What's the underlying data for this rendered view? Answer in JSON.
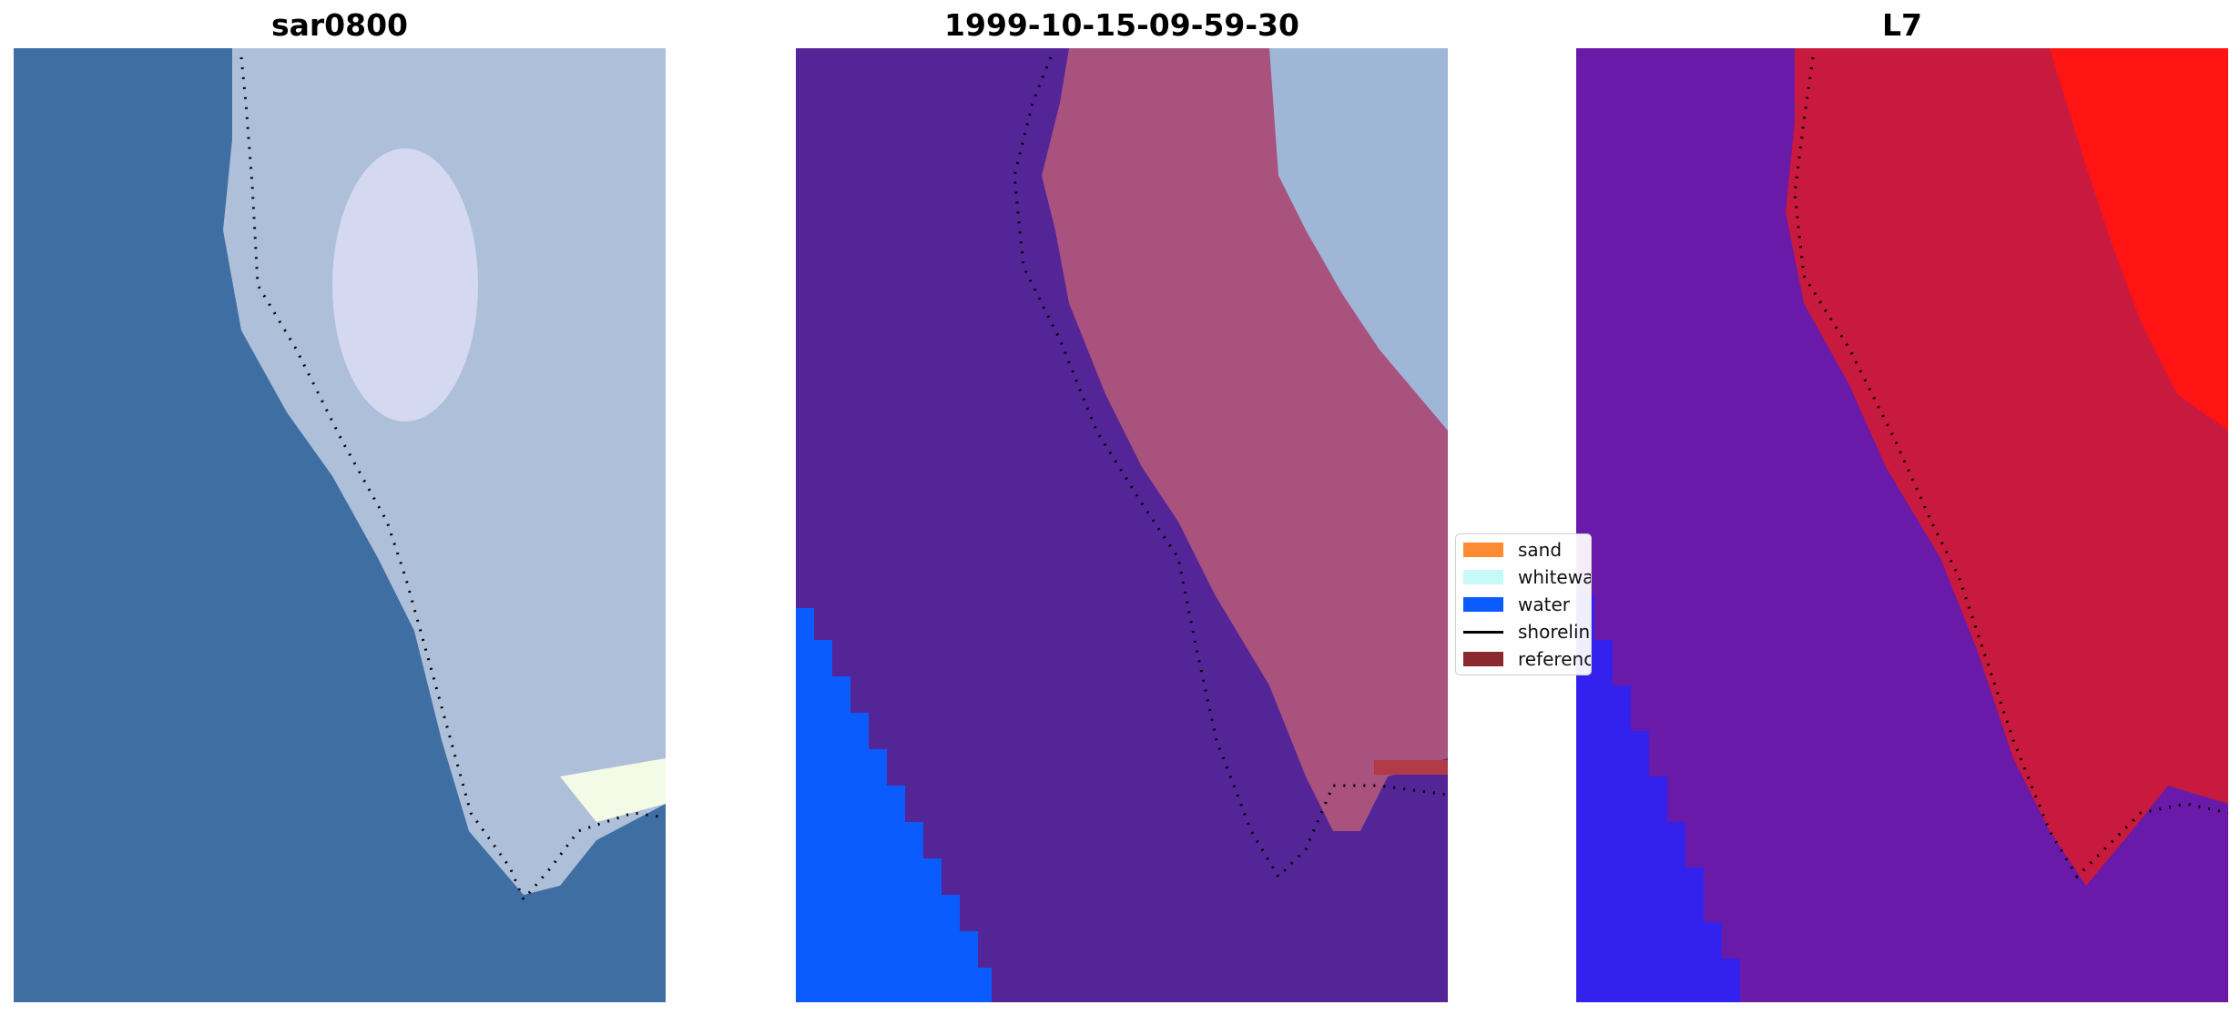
{
  "panels": [
    {
      "title": "sar0800",
      "kind": "rgb"
    },
    {
      "title": "1999-10-15-09-59-30",
      "kind": "classified"
    },
    {
      "title": "L7",
      "kind": "probability"
    }
  ],
  "legend": {
    "items": [
      {
        "label": "sand",
        "color": "#ff8c33",
        "type": "patch"
      },
      {
        "label": "whitewater",
        "color": "#c6f9f7",
        "type": "patch"
      },
      {
        "label": "water",
        "color": "#0a5cff",
        "type": "patch"
      },
      {
        "label": "shoreline",
        "color": "#000000",
        "type": "line"
      },
      {
        "label": "reference shoreline",
        "color": "#8b2a2e",
        "type": "patch"
      }
    ]
  },
  "colors": {
    "water_rgb": "#3f6ea3",
    "land_rgb": "#aebfd9",
    "classified_background": "#542597",
    "classified_sand_overlay": "#a9527e",
    "classified_water": "#0a5cff",
    "probability_background": "#6a1aa8",
    "probability_land": "#c8193e",
    "probability_high": "#ff1414",
    "probability_water": "#3322ee",
    "reference_band": "#b23a48"
  }
}
